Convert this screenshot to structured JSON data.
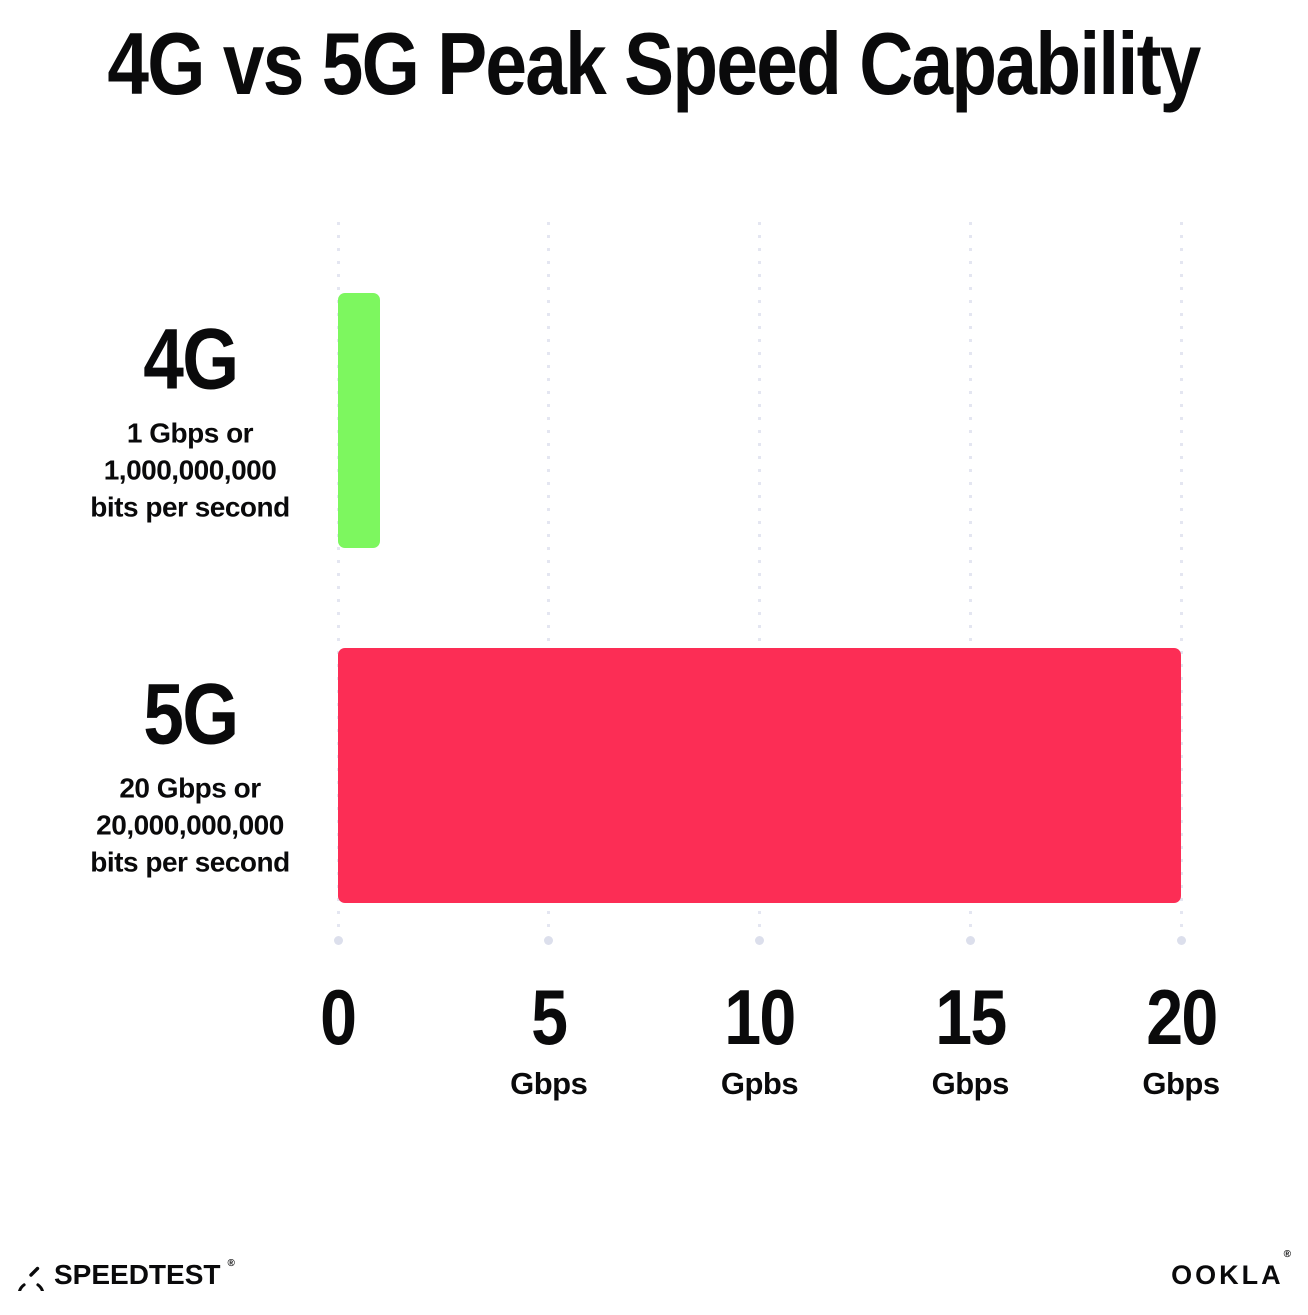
{
  "title": "4G vs 5G Peak Speed Capability",
  "chart_data": {
    "type": "bar",
    "orientation": "horizontal",
    "title": "4G vs 5G Peak Speed Capability",
    "categories": [
      "4G",
      "5G"
    ],
    "values": [
      1,
      20
    ],
    "xlim": [
      0,
      20
    ],
    "grid": "dotted-vertical-gridlines",
    "legend": "none",
    "bars": [
      {
        "label": "4G",
        "value": 1,
        "color": "#7df75f",
        "sublabel_lines": [
          "1 Gbps or",
          "1,000,000,000",
          "bits per second"
        ]
      },
      {
        "label": "5G",
        "value": 20,
        "color": "#fc2d55",
        "sublabel_lines": [
          "20 Gbps or",
          "20,000,000,000",
          "bits per second"
        ]
      }
    ],
    "x_ticks": [
      {
        "value": 0,
        "number": "0",
        "unit": ""
      },
      {
        "value": 5,
        "number": "5",
        "unit": "Gbps"
      },
      {
        "value": 10,
        "number": "10",
        "unit": "Gpbs"
      },
      {
        "value": 15,
        "number": "15",
        "unit": "Gbps"
      },
      {
        "value": 20,
        "number": "20",
        "unit": "Gbps"
      }
    ]
  },
  "footer": {
    "speedtest_label": "SPEEDTEST",
    "speedtest_trademark": "®",
    "ookla_label": "OOKLA",
    "ookla_trademark": "®"
  },
  "colors": {
    "bar_4g": "#7df75f",
    "bar_5g": "#fc2d55",
    "gridline": "#e4e6f1",
    "gridline_end_dot": "#dcdfec",
    "text": "#0a0a0b",
    "background": "#ffffff"
  }
}
